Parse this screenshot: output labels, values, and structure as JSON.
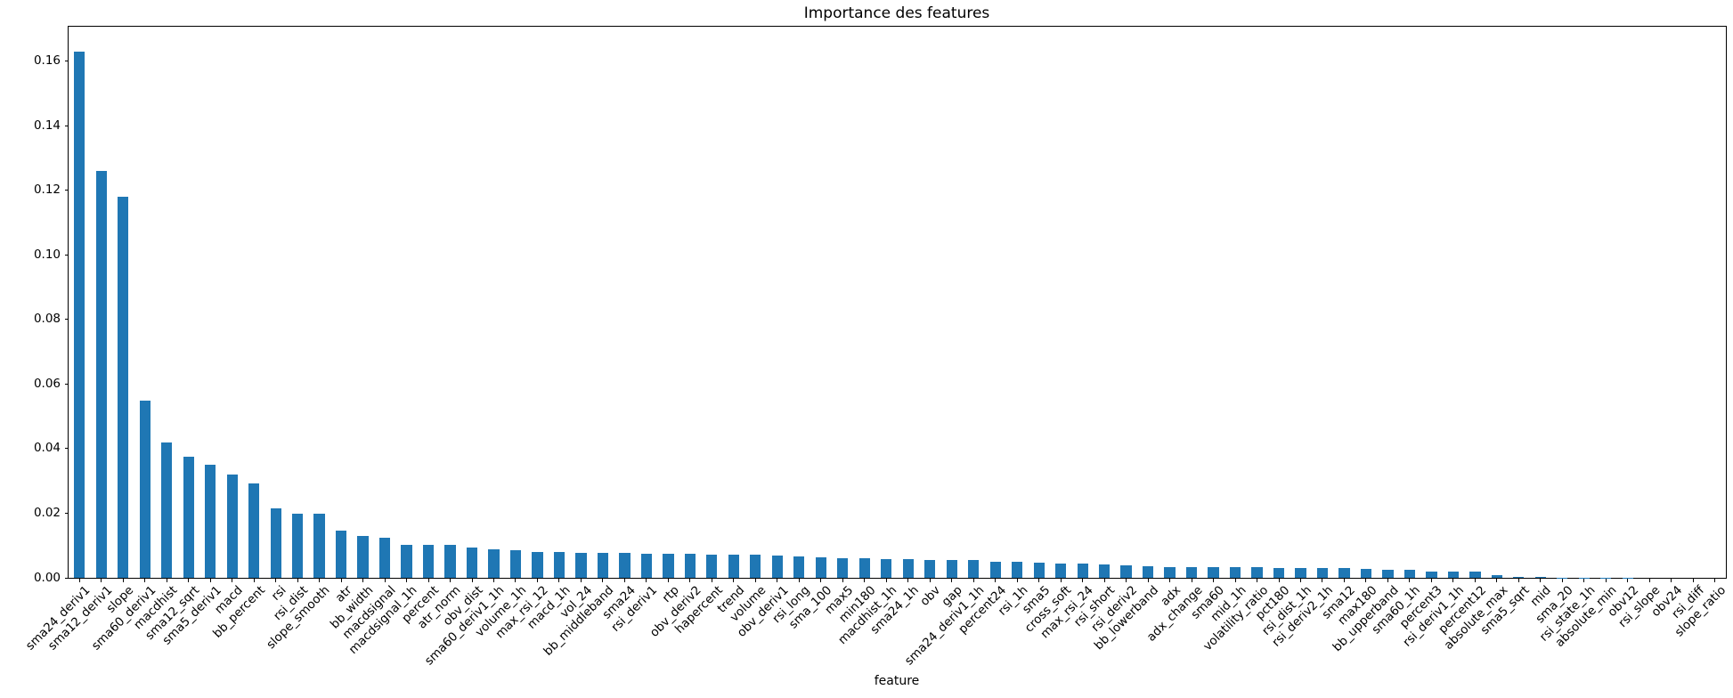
{
  "chart_data": {
    "type": "bar",
    "title": "Importance des features",
    "xlabel": "feature",
    "ylabel": "",
    "bar_color": "#1f77b4",
    "text_color": "#000000",
    "background_color": "#ffffff",
    "grid": false,
    "legend": false,
    "x_tick_rotation_deg": 45,
    "ylim": [
      0,
      0.1707
    ],
    "yticks": [
      0.0,
      0.02,
      0.04,
      0.06,
      0.08,
      0.1,
      0.12,
      0.14,
      0.16
    ],
    "ytick_labels": [
      "0.00",
      "0.02",
      "0.04",
      "0.06",
      "0.08",
      "0.10",
      "0.12",
      "0.14",
      "0.16"
    ],
    "categories": [
      "sma24_deriv1",
      "sma12_deriv1",
      "slope",
      "sma60_deriv1",
      "macdhist",
      "sma12_sqrt",
      "sma5_deriv1",
      "macd",
      "bb_percent",
      "rsi",
      "rsi_dist",
      "slope_smooth",
      "atr",
      "bb_width",
      "macdsignal",
      "macdsignal_1h",
      "percent",
      "atr_norm",
      "obv_dist",
      "sma60_deriv1_1h",
      "volume_1h",
      "max_rsi_12",
      "macd_1h",
      "vol_24",
      "bb_middleband",
      "sma24",
      "rsi_deriv1",
      "rtp",
      "obv_deriv2",
      "hapercent",
      "trend",
      "volume",
      "obv_deriv1",
      "rsi_long",
      "sma_100",
      "max5",
      "min180",
      "macdhist_1h",
      "sma24_1h",
      "obv",
      "gap",
      "sma24_deriv1_1h",
      "percent24",
      "rsi_1h",
      "sma5",
      "cross_soft",
      "max_rsi_24",
      "rsi_short",
      "rsi_deriv2",
      "bb_lowerband",
      "adx",
      "adx_change",
      "sma60",
      "mid_1h",
      "volatility_ratio",
      "pct180",
      "rsi_dist_1h",
      "rsi_deriv2_1h",
      "sma12",
      "max180",
      "bb_upperband",
      "sma60_1h",
      "percent3",
      "rsi_deriv1_1h",
      "percent12",
      "absolute_max",
      "sma5_sqrt",
      "mid",
      "sma_20",
      "rsi_state_1h",
      "absolute_min",
      "obv12",
      "rsi_slope",
      "obv24",
      "rsi_diff",
      "slope_ratio"
    ],
    "values": [
      0.163,
      0.126,
      0.118,
      0.055,
      0.042,
      0.0374,
      0.0351,
      0.0321,
      0.0293,
      0.0214,
      0.0199,
      0.0198,
      0.0146,
      0.0129,
      0.0123,
      0.0103,
      0.0102,
      0.0101,
      0.0093,
      0.0089,
      0.0086,
      0.0081,
      0.0079,
      0.0077,
      0.0076,
      0.0076,
      0.0075,
      0.0075,
      0.0074,
      0.0073,
      0.0072,
      0.0071,
      0.0068,
      0.0066,
      0.0064,
      0.0062,
      0.006,
      0.0058,
      0.0057,
      0.0056,
      0.0056,
      0.0055,
      0.005,
      0.0049,
      0.0046,
      0.0044,
      0.0044,
      0.0041,
      0.0038,
      0.0037,
      0.0034,
      0.0034,
      0.0033,
      0.0033,
      0.0032,
      0.0031,
      0.0031,
      0.003,
      0.0029,
      0.0027,
      0.0026,
      0.0025,
      0.0019,
      0.0018,
      0.0018,
      0.0009,
      0.0002,
      0.0002,
      0.0001,
      0.0001,
      0.0001,
      0.0001,
      0.0,
      0.0,
      0.0,
      0.0
    ]
  }
}
